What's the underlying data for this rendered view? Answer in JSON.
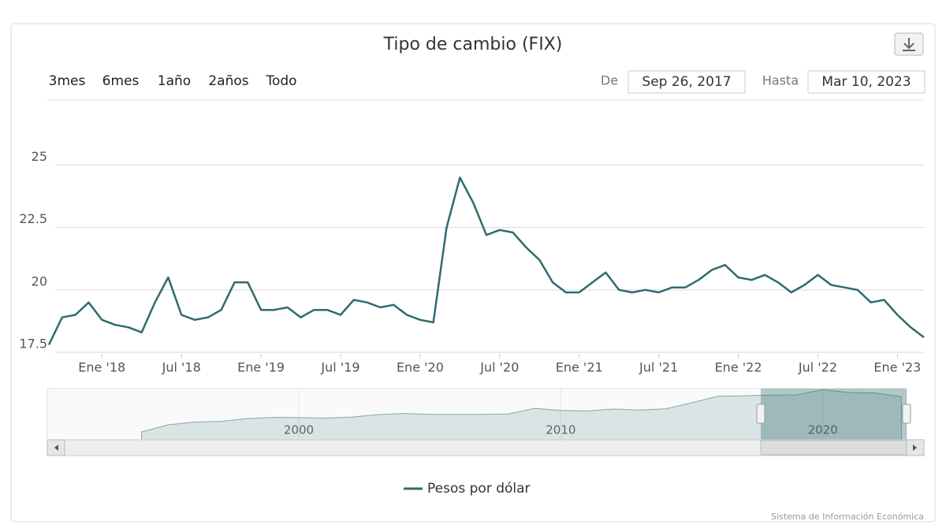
{
  "chart_data": {
    "type": "line",
    "title": "Tipo de cambio (FIX)",
    "range_selector": {
      "buttons": [
        "3mes",
        "6mes",
        "1año",
        "2años",
        "Todo"
      ],
      "from_label": "De",
      "from": "Sep 26, 2017",
      "to_label": "Hasta",
      "to": "Mar 10, 2023"
    },
    "x": [
      "2017-09",
      "2017-10",
      "2017-11",
      "2017-12",
      "2018-01",
      "2018-02",
      "2018-03",
      "2018-04",
      "2018-05",
      "2018-06",
      "2018-07",
      "2018-08",
      "2018-09",
      "2018-10",
      "2018-11",
      "2018-12",
      "2019-01",
      "2019-02",
      "2019-03",
      "2019-04",
      "2019-05",
      "2019-06",
      "2019-07",
      "2019-08",
      "2019-09",
      "2019-10",
      "2019-11",
      "2019-12",
      "2020-01",
      "2020-02",
      "2020-03",
      "2020-04",
      "2020-05",
      "2020-06",
      "2020-07",
      "2020-08",
      "2020-09",
      "2020-10",
      "2020-11",
      "2020-12",
      "2021-01",
      "2021-02",
      "2021-03",
      "2021-04",
      "2021-05",
      "2021-06",
      "2021-07",
      "2021-08",
      "2021-09",
      "2021-10",
      "2021-11",
      "2021-12",
      "2022-01",
      "2022-02",
      "2022-03",
      "2022-04",
      "2022-05",
      "2022-06",
      "2022-07",
      "2022-08",
      "2022-09",
      "2022-10",
      "2022-11",
      "2022-12",
      "2023-01",
      "2023-02",
      "2023-03"
    ],
    "series": [
      {
        "name": "Pesos por dólar",
        "color": "#2f6b6d",
        "values": [
          17.8,
          18.9,
          19.0,
          19.5,
          18.8,
          18.6,
          18.5,
          18.3,
          19.5,
          20.5,
          19.0,
          18.8,
          18.9,
          19.2,
          20.3,
          20.3,
          19.2,
          19.2,
          19.3,
          18.9,
          19.2,
          19.2,
          19.0,
          19.6,
          19.5,
          19.3,
          19.4,
          19.0,
          18.8,
          18.7,
          22.5,
          24.5,
          23.5,
          22.2,
          22.4,
          22.3,
          21.7,
          21.2,
          20.3,
          19.9,
          19.9,
          20.3,
          20.7,
          20.0,
          19.9,
          20.0,
          19.9,
          20.1,
          20.1,
          20.4,
          20.8,
          21.0,
          20.5,
          20.4,
          20.6,
          20.3,
          19.9,
          20.2,
          20.6,
          20.2,
          20.1,
          20.0,
          19.5,
          19.6,
          19.0,
          18.5,
          18.1
        ]
      }
    ],
    "xlim": [
      "2017-09",
      "2023-03"
    ],
    "xticks": [
      {
        "value": "2018-01",
        "label": "Ene '18"
      },
      {
        "value": "2018-07",
        "label": "Jul '18"
      },
      {
        "value": "2019-01",
        "label": "Ene '19"
      },
      {
        "value": "2019-07",
        "label": "Jul '19"
      },
      {
        "value": "2020-01",
        "label": "Ene '20"
      },
      {
        "value": "2020-07",
        "label": "Jul '20"
      },
      {
        "value": "2021-01",
        "label": "Ene '21"
      },
      {
        "value": "2021-07",
        "label": "Jul '21"
      },
      {
        "value": "2022-01",
        "label": "Ene '22"
      },
      {
        "value": "2022-07",
        "label": "Jul '22"
      },
      {
        "value": "2023-01",
        "label": "Ene '23"
      }
    ],
    "ylim": [
      17.5,
      25.3
    ],
    "yticks": [
      17.5,
      20,
      22.5,
      25
    ],
    "grid": true,
    "navigator": {
      "x": [
        1994,
        1995,
        1996,
        1997,
        1998,
        1999,
        2000,
        2001,
        2002,
        2003,
        2004,
        2005,
        2006,
        2007,
        2008,
        2009,
        2010,
        2011,
        2012,
        2013,
        2014,
        2015,
        2016,
        2017,
        2018,
        2019,
        2020,
        2021,
        2022,
        2023
      ],
      "values": [
        3.4,
        6.4,
        7.6,
        7.9,
        9.1,
        9.6,
        9.5,
        9.3,
        9.7,
        10.8,
        11.3,
        10.9,
        10.9,
        10.9,
        11.1,
        13.5,
        12.6,
        12.4,
        13.2,
        12.8,
        13.3,
        15.9,
        18.7,
        18.9,
        19.2,
        19.3,
        21.5,
        20.3,
        20.1,
        18.5
      ],
      "xlim": [
        1990.4,
        2023.2
      ],
      "ylim": [
        0,
        22
      ],
      "xticks": [
        2000,
        2010,
        2020
      ]
    },
    "credits": "Sistema de Información Económica"
  }
}
